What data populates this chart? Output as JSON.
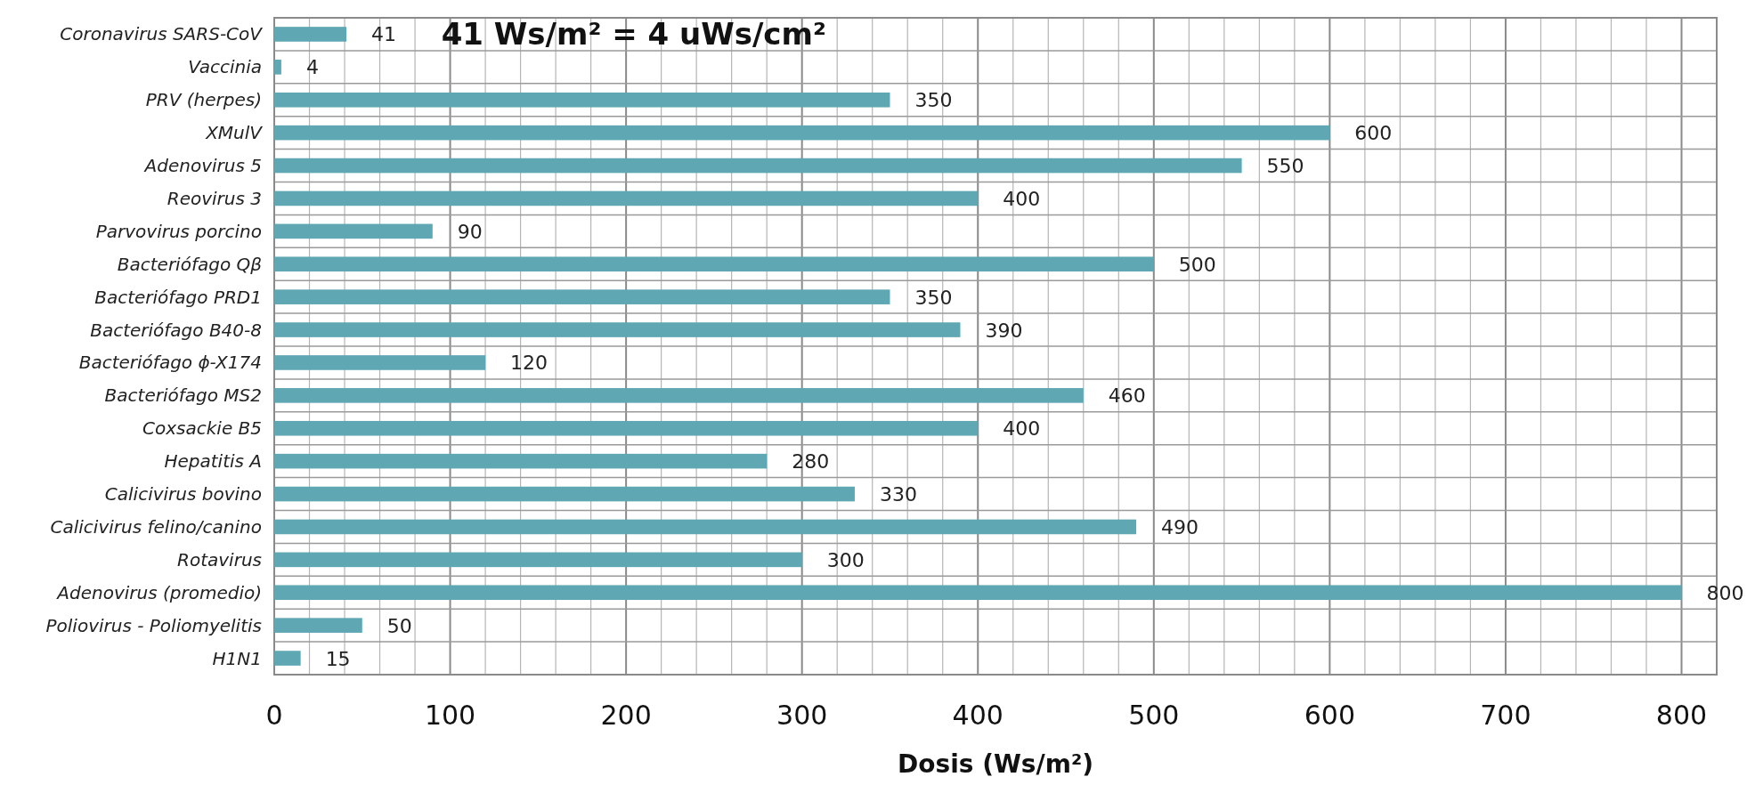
{
  "chart_data": {
    "type": "bar",
    "orientation": "horizontal",
    "title": "41 Ws/m² = 4 uWs/cm²",
    "xlabel": "Dosis (Ws/m²)",
    "categories": [
      "Coronavirus SARS-CoV",
      "Vaccinia",
      "PRV (herpes)",
      "XMulV",
      "Adenovirus 5",
      "Reovirus 3",
      "Parvovirus porcino",
      "Bacteriófago Qβ",
      "Bacteriófago PRD1",
      "Bacteriófago B40-8",
      "Bacteriófago ɸ-X174",
      "Bacteriófago MS2",
      "Coxsackie B5",
      "Hepatitis A",
      "Calicivirus bovino",
      "Calicivirus felino/canino",
      "Rotavirus",
      "Adenovirus (promedio)",
      "Poliovirus - Poliomyelitis",
      "H1N1"
    ],
    "values": [
      41,
      4,
      350,
      600,
      550,
      400,
      90,
      500,
      350,
      390,
      120,
      460,
      400,
      280,
      330,
      490,
      300,
      800,
      50,
      15
    ],
    "color": "#5fa7b3",
    "data_labels": true,
    "grid": true,
    "xlim": [
      0,
      820
    ],
    "xticks": [
      0,
      {
        "value": 20,
        "label": null
      },
      {
        "value": 40,
        "label": null
      },
      {
        "value": 60,
        "label": null
      },
      {
        "value": 80,
        "label": null
      },
      100,
      {
        "value": 120,
        "label": null
      },
      {
        "value": 140,
        "label": null
      },
      {
        "value": 160,
        "label": null
      },
      {
        "value": 180,
        "label": null
      },
      200,
      {
        "value": 220,
        "label": null
      },
      {
        "value": 240,
        "label": null
      },
      {
        "value": 260,
        "label": null
      },
      {
        "value": 280,
        "label": null
      },
      300,
      {
        "value": 320,
        "label": null
      },
      {
        "value": 340,
        "label": null
      },
      {
        "value": 360,
        "label": null
      },
      {
        "value": 380,
        "label": null
      },
      400,
      {
        "value": 420,
        "label": null
      },
      {
        "value": 440,
        "label": null
      },
      {
        "value": 460,
        "label": null
      },
      {
        "value": 480,
        "label": null
      },
      500,
      {
        "value": 520,
        "label": null
      },
      {
        "value": 540,
        "label": null
      },
      {
        "value": 560,
        "label": null
      },
      {
        "value": 580,
        "label": null
      },
      600,
      {
        "value": 620,
        "label": null
      },
      {
        "value": 640,
        "label": null
      },
      {
        "value": 660,
        "label": null
      },
      {
        "value": 680,
        "label": null
      },
      700,
      {
        "value": 720,
        "label": null
      },
      {
        "value": 740,
        "label": null
      },
      {
        "value": 760,
        "label": null
      },
      {
        "value": 780,
        "label": null
      },
      800,
      {
        "value": 820,
        "label": null
      }
    ]
  }
}
